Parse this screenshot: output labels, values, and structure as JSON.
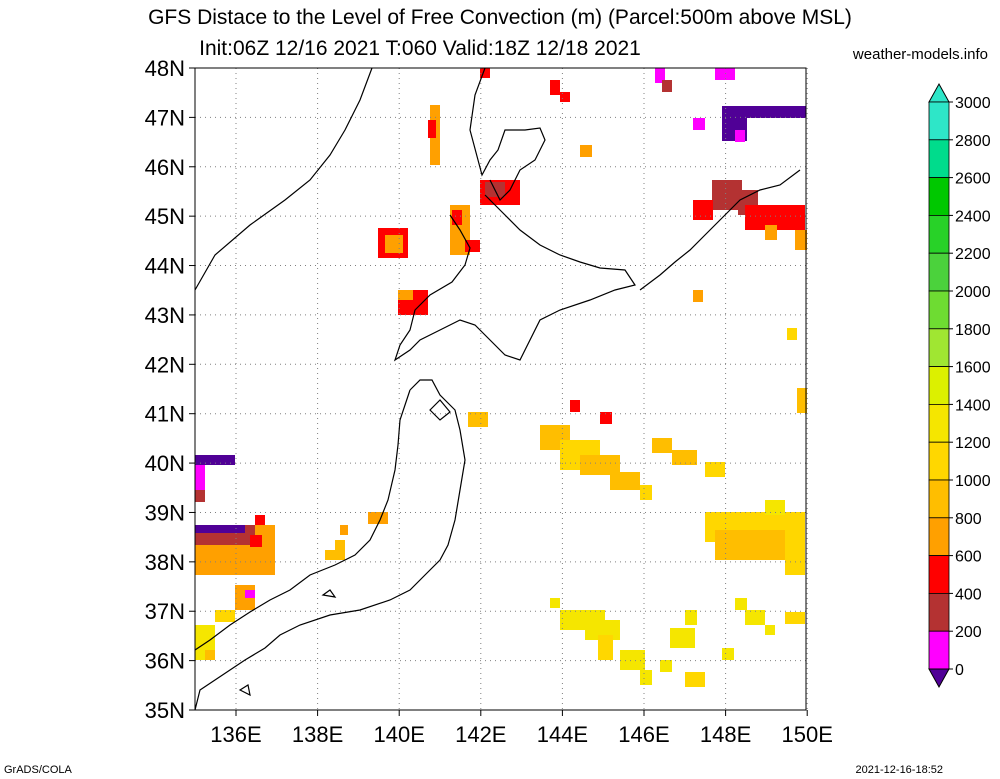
{
  "title_line1": "GFS Distace to the Level of Free Convection (m) (Parcel:500m above MSL)",
  "title_line2": "Init:06Z 12/16 2021 T:060 Valid:18Z 12/18 2021",
  "site": "weather-models.info",
  "footer_left": "GrADS/COLA",
  "footer_right": "2021-12-16-18:52",
  "lat_labels": [
    "48N",
    "47N",
    "46N",
    "45N",
    "44N",
    "43N",
    "42N",
    "41N",
    "40N",
    "39N",
    "38N",
    "37N",
    "36N",
    "35N"
  ],
  "lon_labels": [
    "136E",
    "138E",
    "140E",
    "142E",
    "144E",
    "146E",
    "148E",
    "150E"
  ],
  "colorbar": {
    "labels": [
      "3000",
      "2800",
      "2600",
      "2400",
      "2200",
      "2000",
      "1800",
      "1600",
      "1400",
      "1200",
      "1000",
      "800",
      "600",
      "400",
      "200",
      "0"
    ],
    "colors": [
      "#2ee6c8",
      "#00dc8c",
      "#00c800",
      "#28d228",
      "#4bd23c",
      "#6edc32",
      "#a0e632",
      "#dcf000",
      "#f5e600",
      "#ffd700",
      "#ffbe00",
      "#ffa000",
      "#ff0000",
      "#b43232",
      "#ff00ff",
      "#500096"
    ]
  },
  "colors": {
    "coast": "#000000",
    "grid": "#808080"
  }
}
